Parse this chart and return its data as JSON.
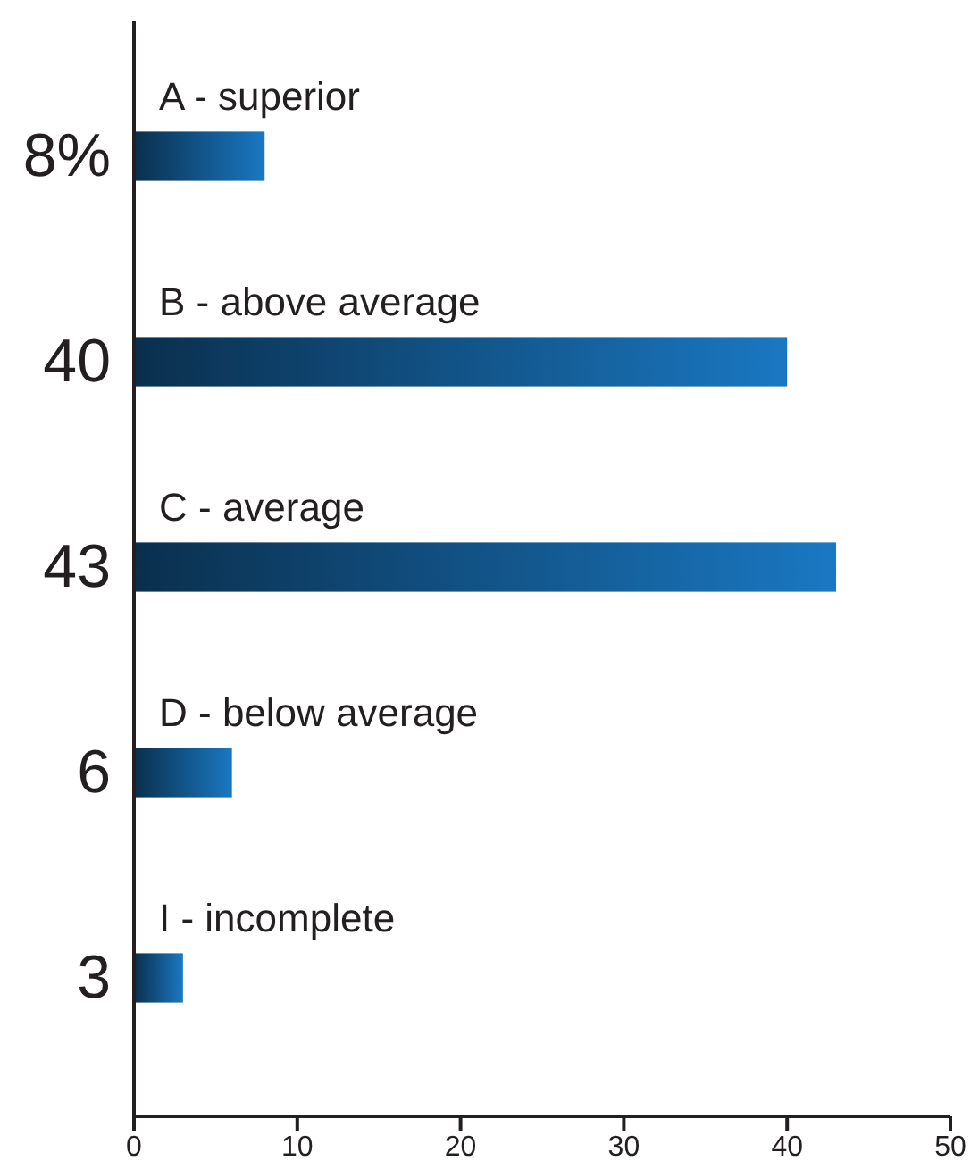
{
  "chart_data": {
    "type": "bar",
    "orientation": "horizontal",
    "categories": [
      "A - superior",
      "B - above average",
      "C - average",
      "D - below average",
      "I - incomplete"
    ],
    "values": [
      8,
      40,
      43,
      6,
      3
    ],
    "value_labels": [
      "8%",
      "40",
      "43",
      "6",
      "3"
    ],
    "color": "#1a78c2",
    "xlim": [
      0,
      50
    ],
    "xticks": [
      0,
      10,
      20,
      30,
      40,
      50
    ],
    "grid": false
  }
}
